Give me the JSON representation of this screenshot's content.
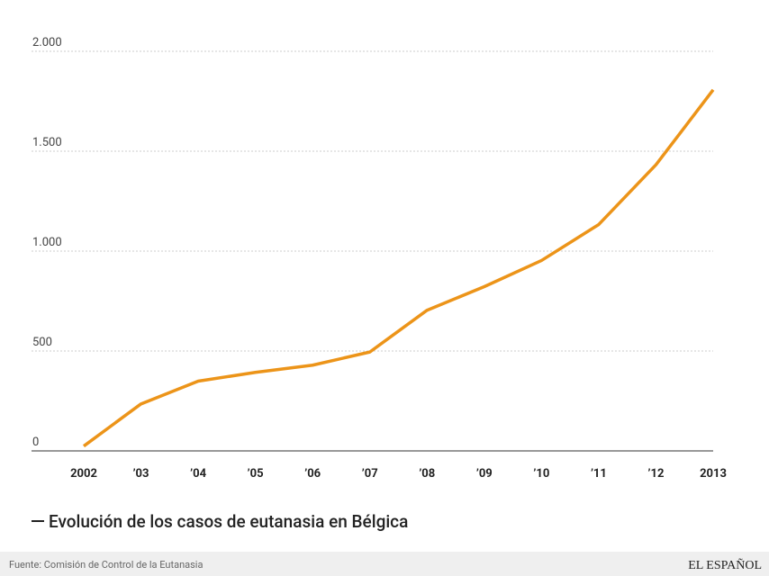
{
  "chart_data": {
    "type": "line",
    "categories": [
      "2002",
      "’03",
      "’04",
      "’05",
      "’06",
      "’07",
      "’08",
      "’09",
      "’10",
      "’11",
      "’12",
      "2013"
    ],
    "series": [
      {
        "name": "Evolución de los casos de eutanasia en Bélgica",
        "color": "#ec9419",
        "values": [
          24,
          235,
          349,
          393,
          429,
          495,
          704,
          822,
          953,
          1133,
          1432,
          1807
        ]
      }
    ],
    "ylim": [
      0,
      2000
    ],
    "yticks": [
      0,
      500,
      {
        "value": 1000,
        "label": "1.000"
      },
      {
        "value": 1500,
        "label": "1.500"
      },
      {
        "value": 2000,
        "label": "2.000"
      }
    ],
    "grid": true,
    "source": "Fuente: Comisión de Control de la Eutanasia",
    "brand": "EL ESPAÑOL"
  }
}
